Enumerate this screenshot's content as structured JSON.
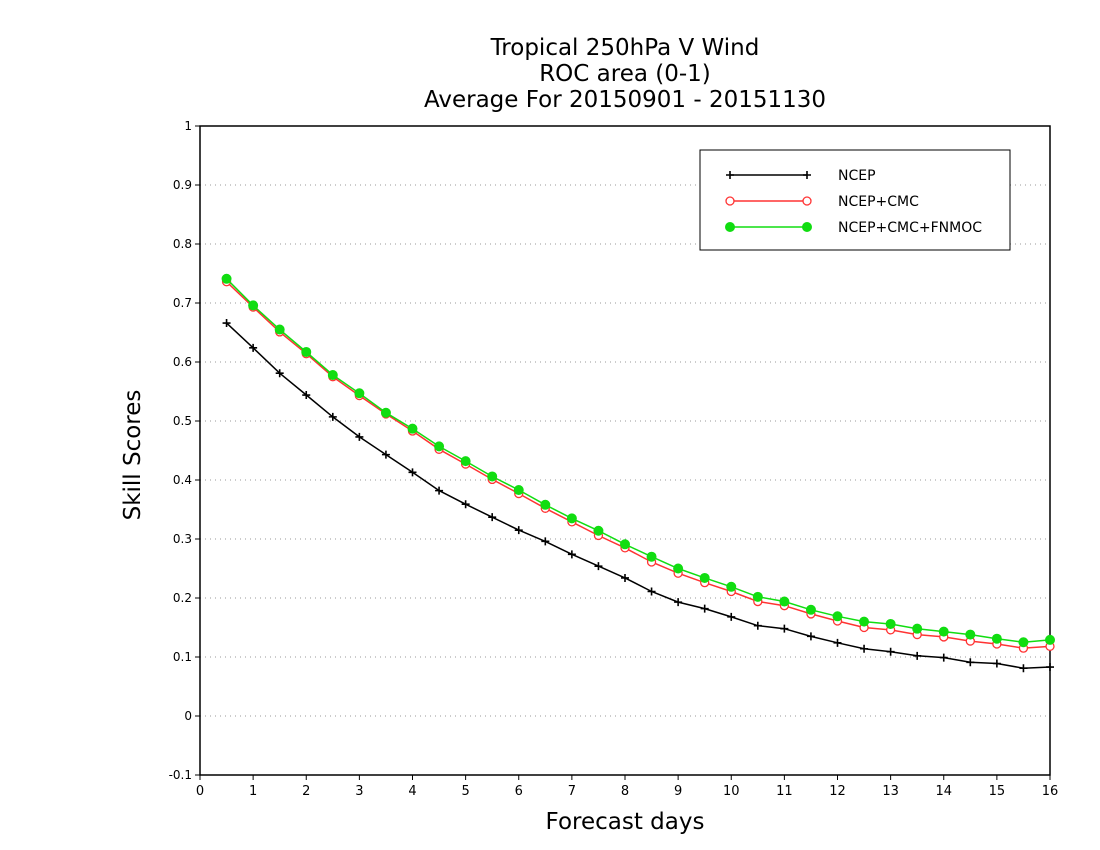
{
  "chart_data": {
    "type": "line",
    "title": [
      "Tropical 250hPa V Wind",
      "ROC area (0-1)",
      "Average For 20150901 - 20151130"
    ],
    "xlabel": "Forecast days",
    "ylabel": "Skill Scores",
    "xlim": [
      0,
      16
    ],
    "ylim": [
      -0.1,
      1
    ],
    "xticks": [
      "0",
      "1",
      "2",
      "3",
      "4",
      "5",
      "6",
      "7",
      "8",
      "9",
      "10",
      "11",
      "12",
      "13",
      "14",
      "15",
      "16"
    ],
    "yticks": [
      "-0.1",
      "0",
      "0.1",
      "0.2",
      "0.3",
      "0.4",
      "0.5",
      "0.6",
      "0.7",
      "0.8",
      "0.9",
      "1"
    ],
    "grid": "horizontal dotted",
    "legend_position": "top-right",
    "x": [
      0.5,
      1,
      1.5,
      2,
      2.5,
      3,
      3.5,
      4,
      4.5,
      5,
      5.5,
      6,
      6.5,
      7,
      7.5,
      8,
      8.5,
      9,
      9.5,
      10,
      10.5,
      11,
      11.5,
      12,
      12.5,
      13,
      13.5,
      14,
      14.5,
      15,
      15.5,
      16
    ],
    "series": [
      {
        "name": "NCEP",
        "color": "#000000",
        "marker": "plus",
        "values": [
          0.666,
          0.624,
          0.581,
          0.544,
          0.507,
          0.473,
          0.443,
          0.413,
          0.382,
          0.359,
          0.337,
          0.315,
          0.296,
          0.274,
          0.254,
          0.234,
          0.211,
          0.193,
          0.182,
          0.168,
          0.153,
          0.148,
          0.135,
          0.124,
          0.114,
          0.109,
          0.102,
          0.099,
          0.091,
          0.089,
          0.081,
          0.083
        ]
      },
      {
        "name": "NCEP+CMC",
        "color": "#ff3333",
        "marker": "open-circle",
        "values": [
          0.736,
          0.693,
          0.651,
          0.614,
          0.575,
          0.543,
          0.512,
          0.483,
          0.452,
          0.427,
          0.401,
          0.377,
          0.352,
          0.329,
          0.306,
          0.285,
          0.261,
          0.242,
          0.226,
          0.211,
          0.194,
          0.187,
          0.173,
          0.161,
          0.15,
          0.146,
          0.138,
          0.134,
          0.127,
          0.122,
          0.115,
          0.118
        ]
      },
      {
        "name": "NCEP+CMC+FNMOC",
        "color": "#11dd11",
        "marker": "filled-circle",
        "values": [
          0.741,
          0.696,
          0.655,
          0.617,
          0.578,
          0.547,
          0.514,
          0.487,
          0.457,
          0.432,
          0.406,
          0.383,
          0.358,
          0.335,
          0.314,
          0.291,
          0.27,
          0.25,
          0.234,
          0.219,
          0.202,
          0.194,
          0.18,
          0.169,
          0.16,
          0.156,
          0.148,
          0.143,
          0.138,
          0.131,
          0.125,
          0.129
        ]
      }
    ]
  }
}
